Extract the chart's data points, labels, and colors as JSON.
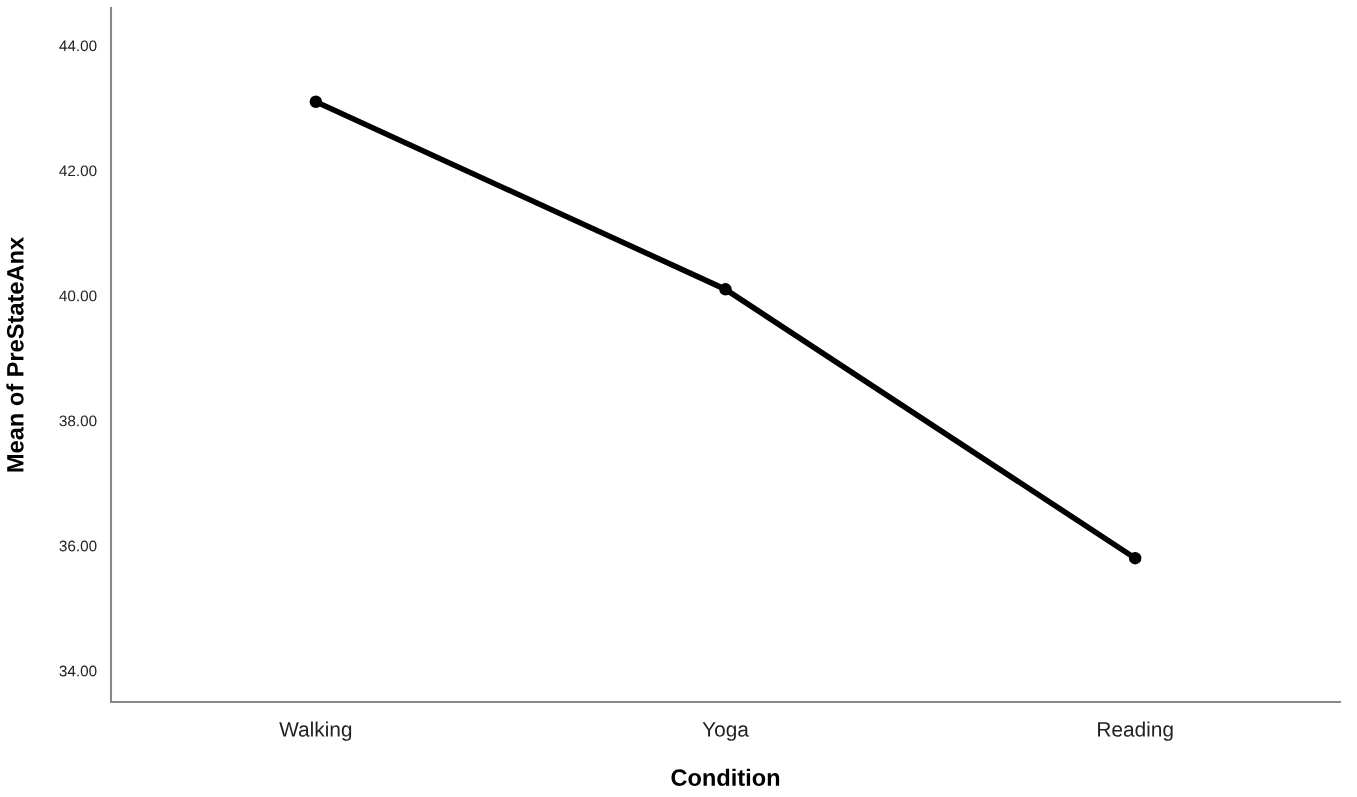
{
  "chart_data": {
    "type": "line",
    "xlabel": "Condition",
    "ylabel": "Mean of PreStateAnx",
    "categories": [
      "Walking",
      "Yoga",
      "Reading"
    ],
    "series": [
      {
        "color": "#000000",
        "values": [
          43.1,
          40.1,
          35.8
        ]
      }
    ],
    "ylim": [
      33.5,
      44.6
    ],
    "yticks": [
      {
        "value": 34,
        "label": "34.00"
      },
      {
        "value": 36,
        "label": "36.00"
      },
      {
        "value": 38,
        "label": "38.00"
      },
      {
        "value": 40,
        "label": "40.00"
      },
      {
        "value": 42,
        "label": "42.00"
      },
      {
        "value": 44,
        "label": "44.00"
      }
    ],
    "grid": false,
    "legend": false,
    "marker": "circle",
    "line_style": "solid"
  }
}
